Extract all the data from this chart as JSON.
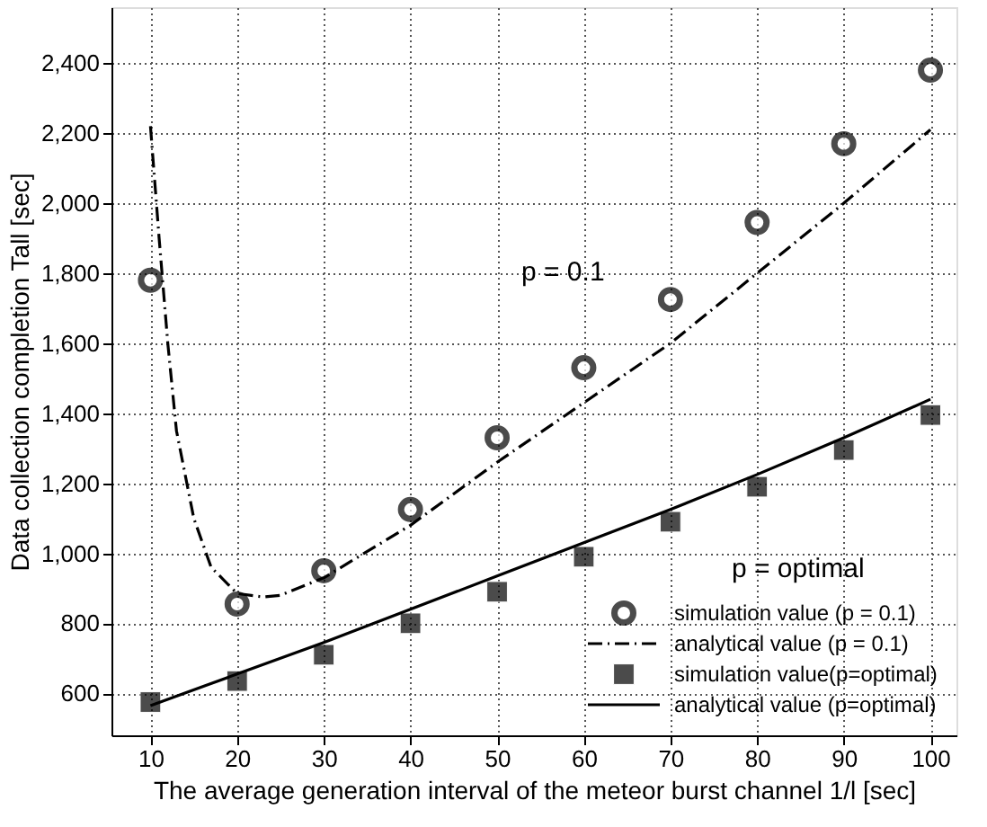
{
  "chart_data": {
    "type": "scatter",
    "xlabel": "The average generation interval of the meteor burst channel 1/l [sec]",
    "ylabel": "Data collection completion Tall [sec]",
    "xlim": [
      5.5,
      103
    ],
    "ylim": [
      480,
      2560
    ],
    "xticks": [
      10,
      20,
      30,
      40,
      50,
      60,
      70,
      80,
      90,
      100
    ],
    "yticks": [
      {
        "value": 600,
        "label": "600"
      },
      {
        "value": 800,
        "label": "800"
      },
      {
        "value": 1000,
        "label": "1,000"
      },
      {
        "value": 1200,
        "label": "1,200"
      },
      {
        "value": 1400,
        "label": "1,400"
      },
      {
        "value": 1600,
        "label": "1,600"
      },
      {
        "value": 1800,
        "label": "1,800"
      },
      {
        "value": 2000,
        "label": "2,000"
      },
      {
        "value": 2200,
        "label": "2,200"
      },
      {
        "value": 2400,
        "label": "2,400"
      }
    ],
    "grid": true,
    "legend": "bottom right",
    "series": [
      {
        "name": "simulation value  (p = 0.1)",
        "marker": "circle",
        "color": "#000000",
        "x": [
          10,
          20,
          30,
          40,
          50,
          60,
          70,
          80,
          90,
          100
        ],
        "values": [
          1780,
          855,
          950,
          1125,
          1330,
          1530,
          1725,
          1945,
          2170,
          2380
        ]
      },
      {
        "name": "analytical value (p = 0.1)",
        "type": "line",
        "line_style": "dashdot",
        "marker": "none",
        "color": "#000000",
        "x": [
          10,
          11,
          12,
          13,
          15,
          17,
          20,
          23,
          25,
          30,
          40,
          50,
          60,
          70,
          80,
          90,
          100
        ],
        "values": [
          2220,
          1900,
          1600,
          1350,
          1100,
          960,
          885,
          875,
          880,
          930,
          1080,
          1260,
          1430,
          1600,
          1800,
          2000,
          2210
        ]
      },
      {
        "name": "simulation value(p=optimal)",
        "marker": "square",
        "color": "#000000",
        "x": [
          10,
          20,
          30,
          40,
          50,
          60,
          70,
          80,
          90,
          100
        ],
        "values": [
          575,
          635,
          710,
          800,
          890,
          990,
          1090,
          1190,
          1295,
          1395
        ]
      },
      {
        "name": "analytical value (p=optimal)",
        "type": "line",
        "line_style": "solid",
        "marker": "none",
        "color": "#000000",
        "x": [
          10,
          20,
          30,
          40,
          50,
          60,
          70,
          80,
          90,
          100
        ],
        "values": [
          565,
          655,
          745,
          840,
          935,
          1030,
          1125,
          1225,
          1330,
          1440
        ]
      }
    ],
    "annotations": [
      "p = 0.1",
      "p = optimal"
    ]
  }
}
